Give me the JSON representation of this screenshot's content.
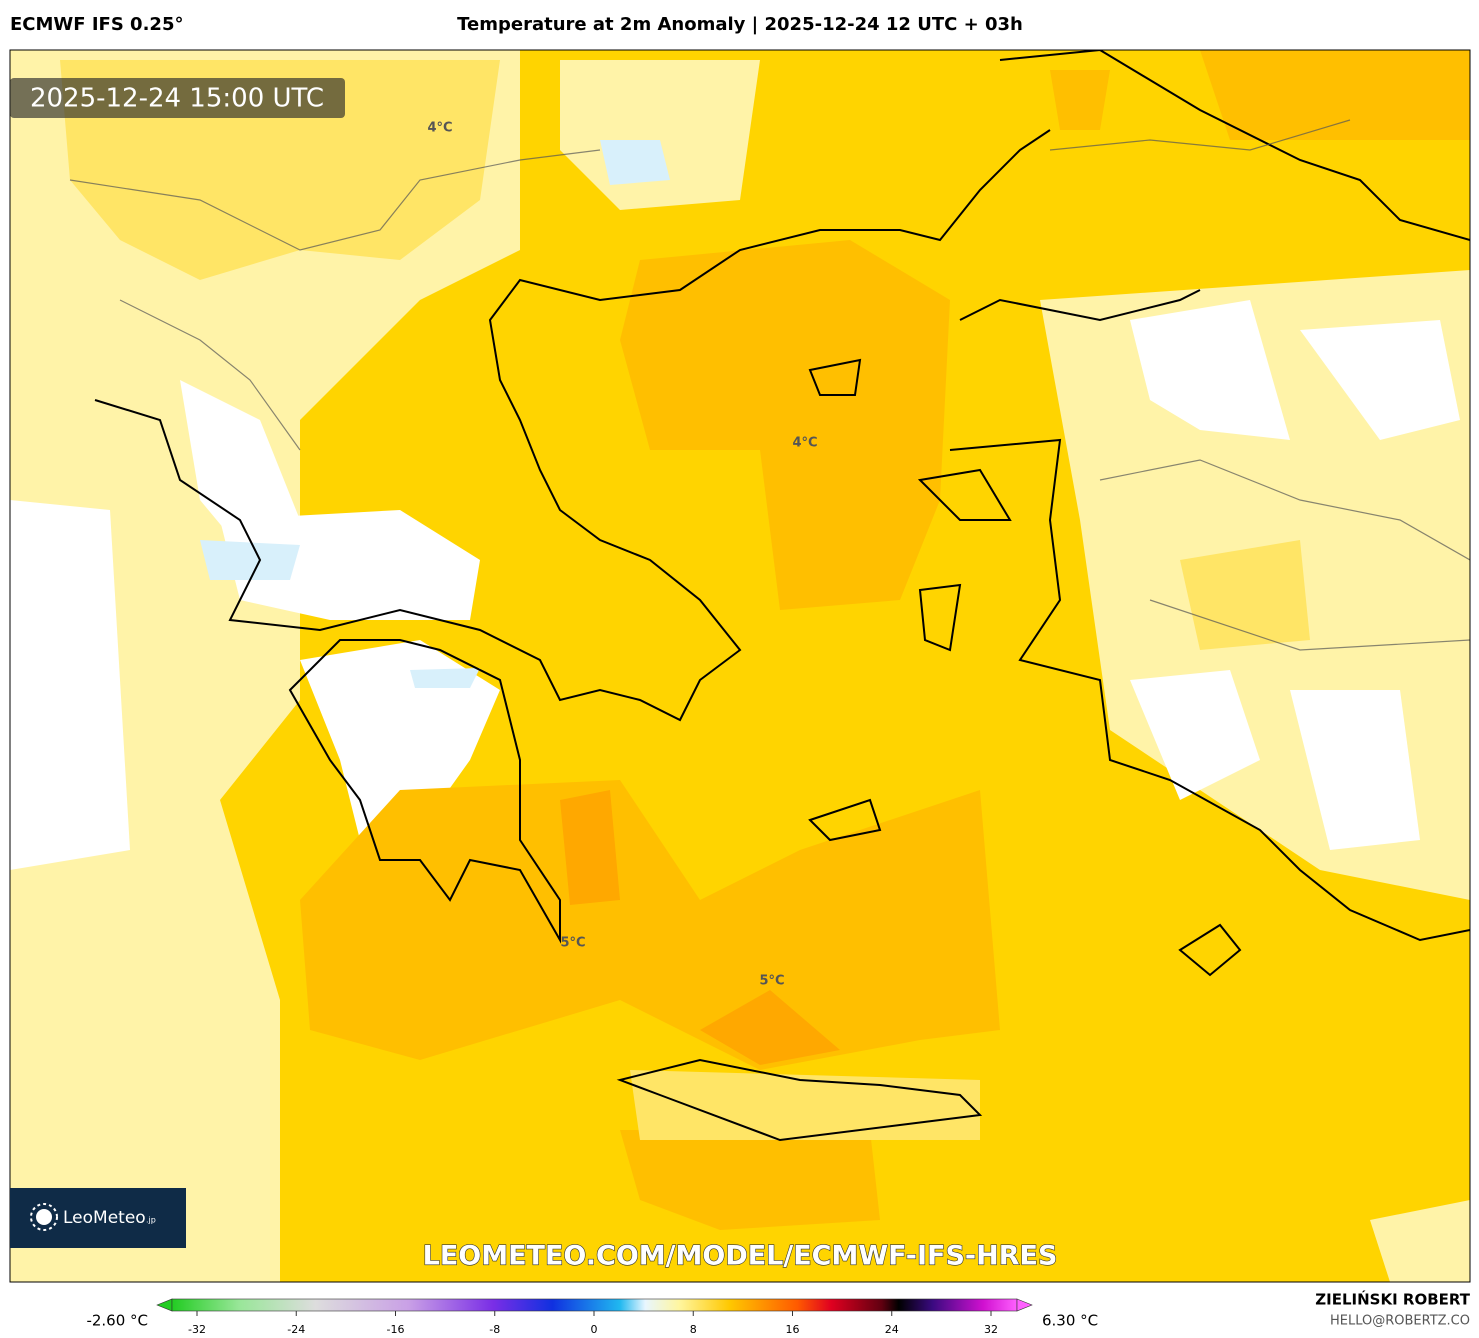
{
  "header": {
    "model": "ECMWF IFS 0.25°",
    "title": "Temperature at 2m Anomaly | 2025-12-24 12 UTC + 03h"
  },
  "map": {
    "valid_time": "2025-12-24 15:00 UTC",
    "contour_labels": [
      "4°C",
      "4°C",
      "5°C",
      "5°C"
    ],
    "watermark": "LEOMETEO.COM/MODEL/ECMWF-IFS-HRES",
    "logo": "LeoMeteo",
    "logo_domain": ".jp"
  },
  "colorbar": {
    "min_label": "-2.60 °C",
    "max_label": "6.30 °C",
    "ticks": [
      -32,
      -24,
      -16,
      -8,
      0,
      8,
      16,
      24,
      32
    ]
  },
  "footer": {
    "author": "ZIELIŃSKI ROBERT",
    "email": "HELLO@ROBERTZ.CO"
  }
}
